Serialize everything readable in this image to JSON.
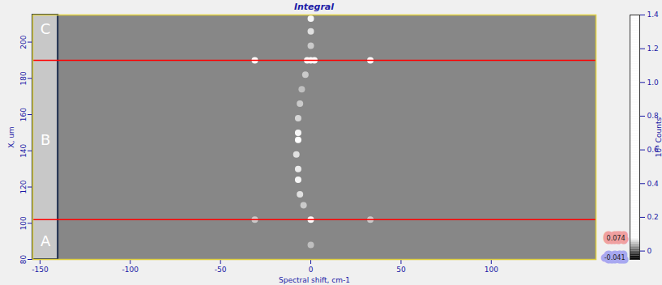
{
  "chart_data": {
    "type": "heatmap",
    "title": "Integral",
    "x_label": "Spectral shift, cm-1",
    "y_label": "X, um",
    "xlim": [
      -154,
      158
    ],
    "xticks": [
      -150,
      -100,
      -50,
      0,
      50,
      100
    ],
    "ylim": [
      80,
      215
    ],
    "yticks": [
      80,
      100,
      120,
      140,
      160,
      180,
      200
    ],
    "background": 0.02,
    "cells": [
      {
        "x": 0,
        "y": 213,
        "value": 0.07
      },
      {
        "x": 0,
        "y": 206,
        "value": 0.06
      },
      {
        "x": 0,
        "y": 198,
        "value": 0.05
      },
      {
        "x": 0,
        "y": 190,
        "value": 0.074
      },
      {
        "x": -2,
        "y": 190,
        "value": 0.074
      },
      {
        "x": 2,
        "y": 190,
        "value": 0.074
      },
      {
        "x": -31,
        "y": 190,
        "value": 0.074
      },
      {
        "x": 33,
        "y": 190,
        "value": 0.074
      },
      {
        "x": -3,
        "y": 182,
        "value": 0.05
      },
      {
        "x": -5,
        "y": 174,
        "value": 0.045
      },
      {
        "x": -6,
        "y": 166,
        "value": 0.05
      },
      {
        "x": -7,
        "y": 158,
        "value": 0.055
      },
      {
        "x": -7,
        "y": 150,
        "value": 0.07
      },
      {
        "x": -7,
        "y": 146,
        "value": 0.074
      },
      {
        "x": -8,
        "y": 138,
        "value": 0.06
      },
      {
        "x": -7,
        "y": 130,
        "value": 0.065
      },
      {
        "x": -7,
        "y": 124,
        "value": 0.07
      },
      {
        "x": -6,
        "y": 116,
        "value": 0.06
      },
      {
        "x": -4,
        "y": 110,
        "value": 0.05
      },
      {
        "x": 0,
        "y": 102,
        "value": 0.074
      },
      {
        "x": -31,
        "y": 102,
        "value": 0.05
      },
      {
        "x": 33,
        "y": 102,
        "value": 0.05
      },
      {
        "x": 0,
        "y": 88,
        "value": 0.045
      }
    ],
    "boundaries_y": [
      102,
      190
    ],
    "regions": {
      "x": [
        -154,
        -140
      ],
      "items": [
        {
          "label": "C",
          "y": 207
        },
        {
          "label": "B",
          "y": 146
        },
        {
          "label": "A",
          "y": 90
        }
      ]
    },
    "colorbar": {
      "label": "10³ Counts",
      "range": [
        -0.05,
        1.4
      ],
      "ticks": [
        0,
        0.2,
        0.4,
        0.6,
        0.8,
        {
          "value": 1,
          "label": "1.0"
        },
        1.2,
        1.4
      ],
      "display_range": [
        -0.041,
        0.074
      ]
    }
  }
}
